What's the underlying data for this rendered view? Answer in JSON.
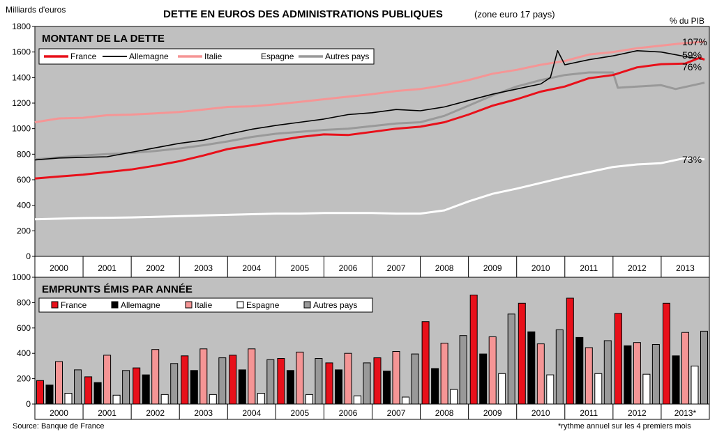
{
  "title_main": "DETTE EN EUROS DES ADMINISTRATIONS PUBLIQUES",
  "title_sub": "(zone euro 17 pays)",
  "y_unit": "Milliards d'euros",
  "pib_label": "% du PIB",
  "source": "Source: Banque de France",
  "footnote": "*rythme annuel sur les 4 premiers mois",
  "colors": {
    "France": "#e8101a",
    "Allemagne": "#000000",
    "Italie": "#f59595",
    "Espagne": "#ffffff",
    "Autres pays": "#999999",
    "plot_bg": "#c0c0c0"
  },
  "chart_data": [
    {
      "type": "line",
      "title": "MONTANT DE LA DETTE",
      "xlabel": "",
      "ylabel": "Milliards d'euros",
      "ylim": [
        0,
        1800
      ],
      "yticks": [
        0,
        200,
        400,
        600,
        800,
        1000,
        1200,
        1400,
        1600,
        1800
      ],
      "xlim": [
        2000,
        2014
      ],
      "x_tick_labels": [
        "2000",
        "2001",
        "2002",
        "2003",
        "2004",
        "2005",
        "2006",
        "2007",
        "2008",
        "2009",
        "2010",
        "2011",
        "2012",
        "2013"
      ],
      "grid": false,
      "legend": "top-left",
      "series": [
        {
          "name": "France",
          "end_label": "76%",
          "points": [
            [
              2000,
              610
            ],
            [
              2000.5,
              625
            ],
            [
              2001,
              640
            ],
            [
              2001.5,
              660
            ],
            [
              2002,
              680
            ],
            [
              2002.5,
              710
            ],
            [
              2003,
              745
            ],
            [
              2003.5,
              790
            ],
            [
              2004,
              840
            ],
            [
              2004.5,
              870
            ],
            [
              2005,
              905
            ],
            [
              2005.5,
              935
            ],
            [
              2006,
              955
            ],
            [
              2006.5,
              950
            ],
            [
              2007,
              975
            ],
            [
              2007.5,
              1000
            ],
            [
              2008,
              1015
            ],
            [
              2008.5,
              1050
            ],
            [
              2009,
              1110
            ],
            [
              2009.5,
              1180
            ],
            [
              2010,
              1230
            ],
            [
              2010.5,
              1290
            ],
            [
              2011,
              1330
            ],
            [
              2011.5,
              1395
            ],
            [
              2012,
              1420
            ],
            [
              2012.5,
              1480
            ],
            [
              2013,
              1505
            ],
            [
              2013.5,
              1510
            ],
            [
              2013.8,
              1555
            ],
            [
              2013.9,
              1540
            ]
          ]
        },
        {
          "name": "Allemagne",
          "end_label": "59%",
          "points": [
            [
              2000,
              755
            ],
            [
              2000.5,
              770
            ],
            [
              2001,
              775
            ],
            [
              2001.5,
              780
            ],
            [
              2002,
              815
            ],
            [
              2002.5,
              850
            ],
            [
              2003,
              885
            ],
            [
              2003.5,
              910
            ],
            [
              2004,
              955
            ],
            [
              2004.5,
              995
            ],
            [
              2005,
              1025
            ],
            [
              2005.5,
              1050
            ],
            [
              2006,
              1075
            ],
            [
              2006.5,
              1110
            ],
            [
              2007,
              1125
            ],
            [
              2007.5,
              1150
            ],
            [
              2008,
              1140
            ],
            [
              2008.5,
              1170
            ],
            [
              2009,
              1220
            ],
            [
              2009.5,
              1270
            ],
            [
              2010,
              1310
            ],
            [
              2010.5,
              1350
            ],
            [
              2010.7,
              1400
            ],
            [
              2010.85,
              1610
            ],
            [
              2011,
              1500
            ],
            [
              2011.5,
              1540
            ],
            [
              2012,
              1570
            ],
            [
              2012.5,
              1610
            ],
            [
              2013,
              1600
            ],
            [
              2013.5,
              1565
            ],
            [
              2013.9,
              1540
            ]
          ]
        },
        {
          "name": "Italie",
          "end_label": "107%",
          "points": [
            [
              2000,
              1050
            ],
            [
              2000.5,
              1080
            ],
            [
              2001,
              1085
            ],
            [
              2001.5,
              1105
            ],
            [
              2002,
              1110
            ],
            [
              2002.5,
              1120
            ],
            [
              2003,
              1130
            ],
            [
              2003.5,
              1150
            ],
            [
              2004,
              1170
            ],
            [
              2004.5,
              1175
            ],
            [
              2005,
              1190
            ],
            [
              2005.5,
              1210
            ],
            [
              2006,
              1230
            ],
            [
              2006.5,
              1250
            ],
            [
              2007,
              1270
            ],
            [
              2007.5,
              1295
            ],
            [
              2008,
              1310
            ],
            [
              2008.5,
              1340
            ],
            [
              2009,
              1380
            ],
            [
              2009.5,
              1430
            ],
            [
              2010,
              1460
            ],
            [
              2010.5,
              1500
            ],
            [
              2011,
              1530
            ],
            [
              2011.5,
              1580
            ],
            [
              2012,
              1600
            ],
            [
              2012.5,
              1630
            ],
            [
              2013,
              1650
            ],
            [
              2013.5,
              1670
            ],
            [
              2013.9,
              1680
            ]
          ]
        },
        {
          "name": "Espagne",
          "end_label": "73%",
          "points": [
            [
              2000,
              290
            ],
            [
              2000.5,
              295
            ],
            [
              2001,
              300
            ],
            [
              2001.5,
              302
            ],
            [
              2002,
              305
            ],
            [
              2002.5,
              310
            ],
            [
              2003,
              315
            ],
            [
              2003.5,
              320
            ],
            [
              2004,
              325
            ],
            [
              2004.5,
              330
            ],
            [
              2005,
              335
            ],
            [
              2005.5,
              335
            ],
            [
              2006,
              340
            ],
            [
              2006.5,
              340
            ],
            [
              2007,
              340
            ],
            [
              2007.5,
              335
            ],
            [
              2008,
              335
            ],
            [
              2008.5,
              360
            ],
            [
              2009,
              430
            ],
            [
              2009.5,
              490
            ],
            [
              2010,
              530
            ],
            [
              2010.5,
              575
            ],
            [
              2011,
              620
            ],
            [
              2011.5,
              660
            ],
            [
              2012,
              700
            ],
            [
              2012.5,
              720
            ],
            [
              2013,
              730
            ],
            [
              2013.5,
              770
            ],
            [
              2013.9,
              760
            ]
          ]
        },
        {
          "name": "Autres pays",
          "end_label": "",
          "points": [
            [
              2000,
              760
            ],
            [
              2000.5,
              775
            ],
            [
              2001,
              790
            ],
            [
              2001.5,
              800
            ],
            [
              2002,
              810
            ],
            [
              2002.5,
              825
            ],
            [
              2003,
              845
            ],
            [
              2003.5,
              870
            ],
            [
              2004,
              900
            ],
            [
              2004.5,
              935
            ],
            [
              2005,
              960
            ],
            [
              2005.5,
              975
            ],
            [
              2006,
              990
            ],
            [
              2006.5,
              1000
            ],
            [
              2007,
              1020
            ],
            [
              2007.5,
              1040
            ],
            [
              2008,
              1050
            ],
            [
              2008.5,
              1100
            ],
            [
              2009,
              1180
            ],
            [
              2009.5,
              1260
            ],
            [
              2010,
              1330
            ],
            [
              2010.5,
              1380
            ],
            [
              2011,
              1420
            ],
            [
              2011.5,
              1440
            ],
            [
              2012,
              1440
            ],
            [
              2012.1,
              1320
            ],
            [
              2012.5,
              1330
            ],
            [
              2013,
              1340
            ],
            [
              2013.3,
              1310
            ],
            [
              2013.9,
              1360
            ]
          ]
        }
      ]
    },
    {
      "type": "bar",
      "title": "EMPRUNTS ÉMIS PAR ANNÉE",
      "xlabel": "",
      "ylabel": "",
      "ylim": [
        0,
        1000
      ],
      "yticks": [
        0,
        200,
        400,
        600,
        800,
        1000
      ],
      "categories": [
        "2000",
        "2001",
        "2002",
        "2003",
        "2004",
        "2005",
        "2006",
        "2007",
        "2008",
        "2009",
        "2010",
        "2011",
        "2012",
        "2013*"
      ],
      "grid": false,
      "legend": "top-left",
      "series": [
        {
          "name": "France",
          "values": [
            185,
            215,
            285,
            380,
            385,
            360,
            325,
            365,
            650,
            860,
            795,
            835,
            715,
            795
          ]
        },
        {
          "name": "Allemagne",
          "values": [
            150,
            170,
            230,
            265,
            270,
            265,
            270,
            260,
            280,
            395,
            570,
            525,
            460,
            380
          ]
        },
        {
          "name": "Italie",
          "values": [
            335,
            385,
            430,
            435,
            435,
            410,
            400,
            415,
            480,
            530,
            475,
            445,
            485,
            565
          ]
        },
        {
          "name": "Espagne",
          "values": [
            85,
            70,
            75,
            75,
            85,
            75,
            65,
            55,
            115,
            240,
            230,
            240,
            235,
            300
          ]
        },
        {
          "name": "Autres pays",
          "values": [
            270,
            265,
            320,
            365,
            350,
            360,
            325,
            395,
            540,
            710,
            585,
            500,
            470,
            575
          ]
        }
      ]
    }
  ]
}
